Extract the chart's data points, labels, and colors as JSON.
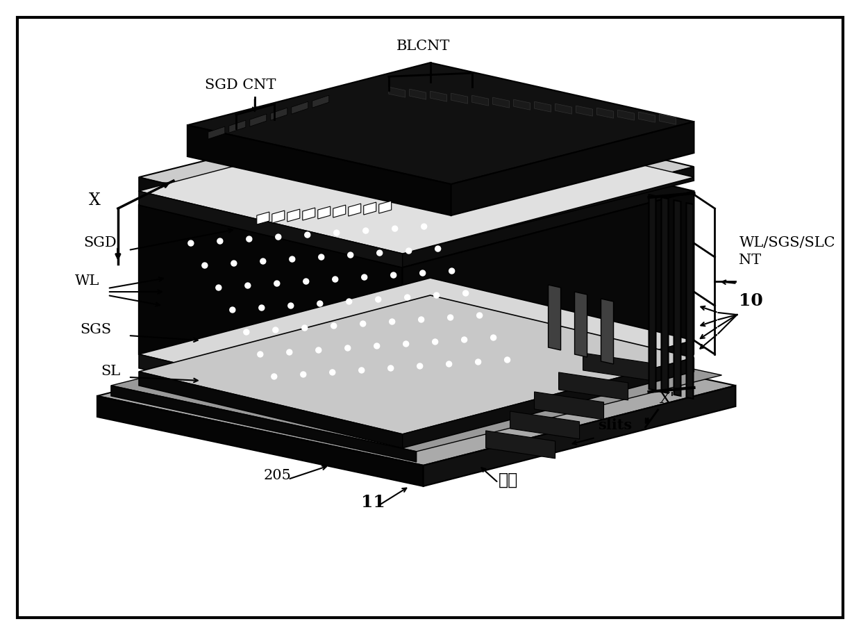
{
  "background_color": "#f0f0f0",
  "border_color": "#000000",
  "fig_bg": "#ffffff",
  "labels": {
    "SGD_CNT": "SGD CNT",
    "BLCNT": "BLCNT",
    "X": "X",
    "SGD": "SGD",
    "WL": "WL",
    "SGS": "SGS",
    "SL": "SL",
    "WL_SGS_SLC_NT": "WL/SGS/SLC\nNT",
    "10": "10",
    "Xprime": "X'",
    "slits": "slits",
    "taijiE": "台阶",
    "205": "205",
    "11": "11"
  },
  "image_bg": "#ffffff"
}
